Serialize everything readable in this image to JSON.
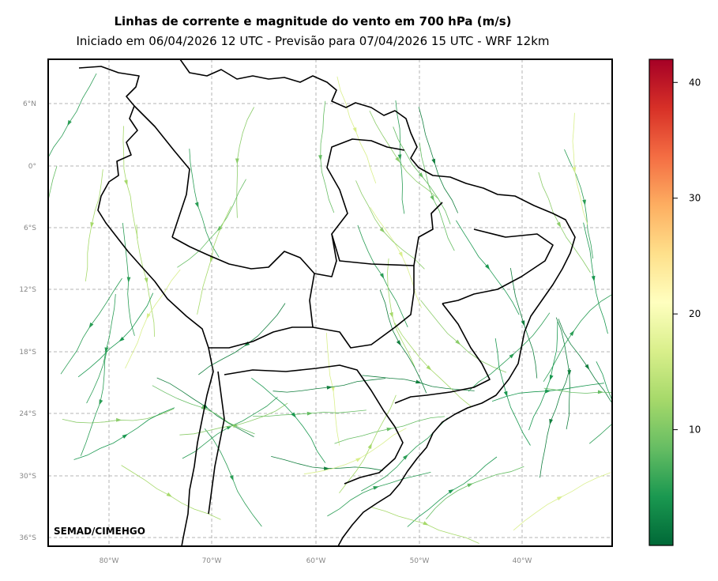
{
  "title": "Linhas de corrente e magnitude do vento em 700 hPa (m/s)",
  "subtitle": "Iniciado em 06/04/2026 12 UTC - Previsão para 07/04/2026 15 UTC - WRF 12km",
  "credit": "SEMAD/CIMEHGO",
  "lon_ticks": [
    "80°W",
    "70°W",
    "60°W",
    "50°W",
    "40°W"
  ],
  "lat_ticks": [
    "6°N",
    "0°",
    "6°S",
    "12°S",
    "18°S",
    "24°S",
    "30°S",
    "36°S"
  ],
  "colorbar": {
    "ticks": [
      "10",
      "20",
      "30",
      "40"
    ],
    "range": [
      0,
      42
    ],
    "colors": [
      "#006837",
      "#1a9850",
      "#66bd63",
      "#a6d96a",
      "#d9ef8b",
      "#ffffbf",
      "#fee08b",
      "#fdae61",
      "#f46d43",
      "#d73027",
      "#a50026"
    ]
  }
}
